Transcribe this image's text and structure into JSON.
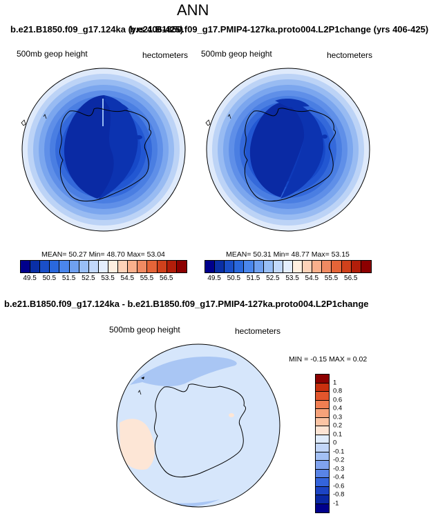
{
  "page_title": "ANN",
  "panel_left": {
    "header": "b.e21.B1850.f09_g17.124ka (yrs 406-425)",
    "variable": "500mb geop height",
    "units": "hectometers",
    "stats": "MEAN=  50.27  Min=  48.70  Max=  53.04"
  },
  "panel_right": {
    "header": "b.e21.B1850.f09_g17.PMIP4-127ka.proto004.L2P1change (yrs 406-425)",
    "variable": "500mb geop height",
    "units": "hectometers",
    "stats": "MEAN=  50.31  Min=  48.77  Max=  53.15"
  },
  "panel_diff": {
    "header": "b.e21.B1850.f09_g17.124ka - b.e21.B1850.f09_g17.PMIP4-127ka.proto004.L2P1change",
    "variable": "500mb geop height",
    "units": "hectometers",
    "minmax": "MIN =  -0.15 MAX =   0.02"
  },
  "colorbar_top": {
    "colors": [
      "#00008c",
      "#0a2fa6",
      "#1a4fc8",
      "#2a68dc",
      "#4a86ec",
      "#6fa0f0",
      "#98bef6",
      "#c2d8fa",
      "#e4eefd",
      "#ffefe0",
      "#fdd2b8",
      "#f9b08c",
      "#f08a62",
      "#e46438",
      "#d0411c",
      "#b21e0a",
      "#8c0000"
    ],
    "labels": [
      "49.5",
      "50.5",
      "51.5",
      "52.5",
      "53.5",
      "54.5",
      "55.5",
      "56.5"
    ]
  },
  "colorbar_diff": {
    "colors": [
      "#8c0000",
      "#c8300e",
      "#e2562c",
      "#f07e52",
      "#f6a27a",
      "#fbc4a4",
      "#fde4d4",
      "#e0ecfc",
      "#c2d6f8",
      "#a3c0f4",
      "#7fa2ee",
      "#5984e6",
      "#3464dc",
      "#1c44c4",
      "#0a28a4",
      "#00008c"
    ],
    "labels": [
      "1",
      "0.8",
      "0.6",
      "0.4",
      "0.3",
      "0.2",
      "0.1",
      "0",
      "-0.1",
      "-0.2",
      "-0.3",
      "-0.4",
      "-0.6",
      "-0.8",
      "-1"
    ]
  },
  "map_rings": [
    "#dfeafb",
    "#bcd3f6",
    "#98bbf2",
    "#7ba6ee",
    "#5f8fe8",
    "#4a7ee2",
    "#3469da",
    "#2257d2",
    "#1749c8",
    "#0f3bba"
  ],
  "map_core": "#0c33b0",
  "map_deep": "#0a2aa4",
  "diff_field": "#d6e6fb",
  "diff_blue_patch": "#a9c6f4",
  "diff_warm_patch": "#fde6d6"
}
